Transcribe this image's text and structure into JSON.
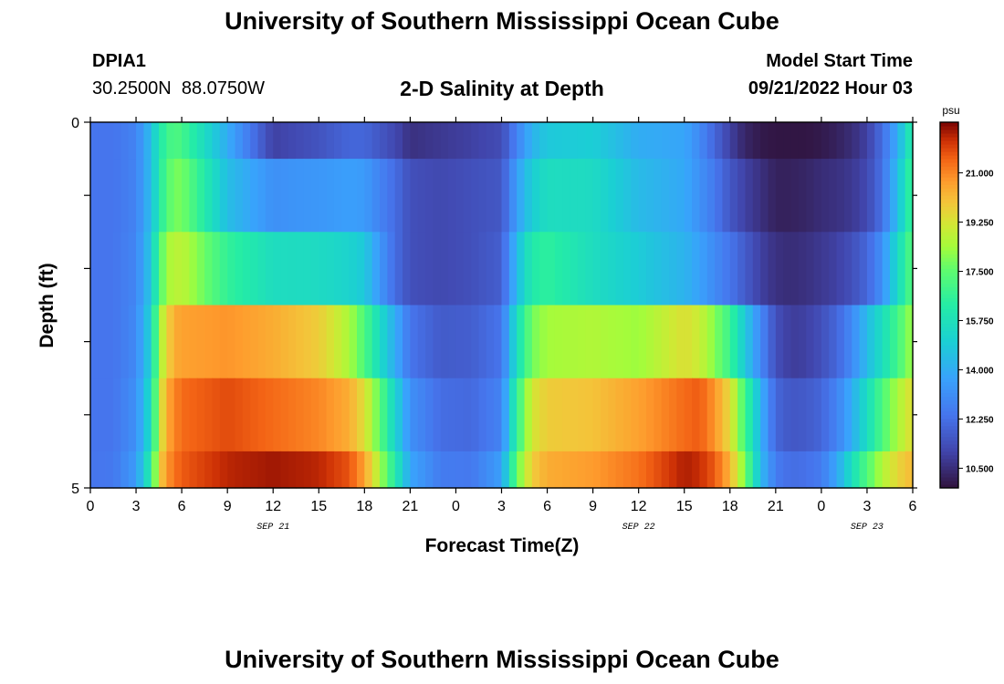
{
  "header": {
    "title": "University of Southern Mississippi Ocean Cube",
    "station_id": "DPIA1",
    "coordinates": "30.2500N  88.0750W",
    "plot_title": "2-D Salinity at Depth",
    "model_start_label": "Model Start Time",
    "model_start_value": "09/21/2022 Hour 03"
  },
  "footer": {
    "title": "University of Southern Mississippi Ocean Cube"
  },
  "chart_data": {
    "type": "heatmap",
    "title": "2-D Salinity at Depth",
    "xlabel": "Forecast Time(Z)",
    "ylabel": "Depth (ft)",
    "xlim": [
      0,
      54
    ],
    "ylim": [
      0,
      5
    ],
    "x_tick_labels": [
      "0",
      "3",
      "6",
      "9",
      "12",
      "15",
      "18",
      "21",
      "0",
      "3",
      "6",
      "9",
      "12",
      "15",
      "18",
      "21",
      "0",
      "3",
      "6"
    ],
    "x_tick_hours": [
      0,
      3,
      6,
      9,
      12,
      15,
      18,
      21,
      24,
      27,
      30,
      33,
      36,
      39,
      42,
      45,
      48,
      51,
      54
    ],
    "y_tick_labels": [
      "0",
      "5"
    ],
    "day_labels": [
      {
        "text": "SEP 21",
        "hour": 12
      },
      {
        "text": "SEP 22",
        "hour": 36
      },
      {
        "text": "SEP 23",
        "hour": 51
      }
    ],
    "colorbar": {
      "unit": "psu",
      "min": 9.8,
      "max": 22.8,
      "tick_values": [
        10.5,
        12.25,
        14.0,
        15.75,
        17.5,
        19.25,
        21.0
      ],
      "tick_labels": [
        "10.500",
        "12.250",
        "14.000",
        "15.750",
        "17.500",
        "19.250",
        "21.000"
      ]
    },
    "depth_layers": [
      0,
      1,
      2,
      3,
      4,
      5
    ],
    "time_hours": [
      0,
      1.5,
      3,
      4,
      4.5,
      5,
      5.5,
      6,
      9,
      12,
      15,
      17,
      18,
      19,
      20,
      21,
      23,
      25,
      27,
      28,
      29,
      30,
      33,
      36,
      39,
      40,
      41,
      42,
      43,
      44,
      45,
      46,
      47,
      48,
      49,
      50,
      51,
      52,
      53,
      54
    ],
    "salinity": [
      [
        12.4,
        12.4,
        12.8,
        14.5,
        16.0,
        16.8,
        17.2,
        17.0,
        14.0,
        11.0,
        11.5,
        12.0,
        12.0,
        11.6,
        11.2,
        10.6,
        10.8,
        11.0,
        11.3,
        12.8,
        14.2,
        14.8,
        15.0,
        14.0,
        13.8,
        13.0,
        12.0,
        11.0,
        10.3,
        10.0,
        9.9,
        9.9,
        9.9,
        10.0,
        10.2,
        10.5,
        11.0,
        12.2,
        14.0,
        16.5
      ],
      [
        12.4,
        12.4,
        12.8,
        14.5,
        16.0,
        17.3,
        17.8,
        17.9,
        14.5,
        13.2,
        13.4,
        13.6,
        13.5,
        12.8,
        12.2,
        11.4,
        11.2,
        11.4,
        11.6,
        13.6,
        15.0,
        15.6,
        15.5,
        14.4,
        13.9,
        13.2,
        12.5,
        11.6,
        11.0,
        10.6,
        10.2,
        10.2,
        10.3,
        10.5,
        10.6,
        10.8,
        11.2,
        12.3,
        14.5,
        17.0
      ],
      [
        12.4,
        12.4,
        12.9,
        14.8,
        17.0,
        18.4,
        18.7,
        18.8,
        16.6,
        15.6,
        15.5,
        15.2,
        14.8,
        13.4,
        12.2,
        11.4,
        11.2,
        11.4,
        11.8,
        14.4,
        16.2,
        16.5,
        15.6,
        14.9,
        14.2,
        13.7,
        13.0,
        12.4,
        11.7,
        11.0,
        10.6,
        10.5,
        10.6,
        10.8,
        11.0,
        11.4,
        12.0,
        13.2,
        15.4,
        17.5
      ],
      [
        12.4,
        12.4,
        13.0,
        15.2,
        18.2,
        19.6,
        20.4,
        20.6,
        20.8,
        20.4,
        19.8,
        18.5,
        17.2,
        15.5,
        14.0,
        12.4,
        11.7,
        11.8,
        12.4,
        15.6,
        17.8,
        18.4,
        18.6,
        18.3,
        19.4,
        19.0,
        18.0,
        16.8,
        14.8,
        13.0,
        11.4,
        10.9,
        11.0,
        11.4,
        12.0,
        13.0,
        14.4,
        15.6,
        17.0,
        18.4
      ],
      [
        12.4,
        12.4,
        13.2,
        15.6,
        18.8,
        20.4,
        21.0,
        21.4,
        21.8,
        21.4,
        21.0,
        20.4,
        19.4,
        17.5,
        15.2,
        13.2,
        12.2,
        12.1,
        12.8,
        16.6,
        19.2,
        19.8,
        20.0,
        20.6,
        21.4,
        21.6,
        20.8,
        19.5,
        17.0,
        14.2,
        12.0,
        11.6,
        11.7,
        12.0,
        12.8,
        14.0,
        15.6,
        17.2,
        18.5,
        19.5
      ],
      [
        12.4,
        12.5,
        13.5,
        16.4,
        19.6,
        20.7,
        21.3,
        21.6,
        22.3,
        22.5,
        22.3,
        21.7,
        20.6,
        18.5,
        16.2,
        13.8,
        12.6,
        12.5,
        13.6,
        17.6,
        19.8,
        20.4,
        20.7,
        21.3,
        22.4,
        22.2,
        21.6,
        20.3,
        17.8,
        14.4,
        12.6,
        12.2,
        12.3,
        12.6,
        13.8,
        15.6,
        17.3,
        18.6,
        19.6,
        20.2
      ]
    ]
  }
}
